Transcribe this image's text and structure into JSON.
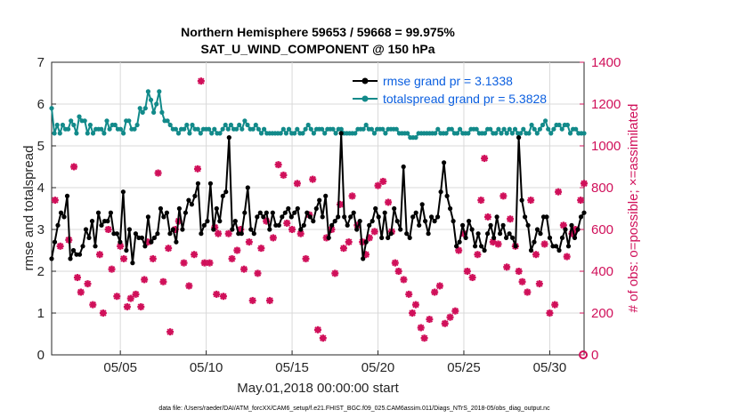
{
  "chart_data": {
    "type": "line",
    "title_line1": "Northern Hemisphere 59653 / 59668 = 99.975%",
    "title_line2": "SAT_U_WIND_COMPONENT @ 150 hPa",
    "xlabel": "May.01,2018 00:00:00 start",
    "ylabel_left": "rmse and totalspread",
    "ylabel_right": "# of obs: o=possible; ×=assimilated",
    "footer": "data file: /Users/raeder/DAI/ATM_forcXX/CAM6_setup/f.e21.FHIST_BGC.f09_025.CAM6assim.011/Diags_NTrS_2018-05/obs_diag_output.nc",
    "xlim": [
      1.0,
      32.0
    ],
    "ylim_left": [
      0,
      7
    ],
    "ylim_right": [
      0,
      1400
    ],
    "x_tick_labels": [
      "05/05",
      "05/10",
      "05/15",
      "05/20",
      "05/25",
      "05/30"
    ],
    "x_tick_values": [
      5,
      10,
      15,
      20,
      25,
      30
    ],
    "y_left_ticks": [
      "0",
      "1",
      "2",
      "3",
      "4",
      "5",
      "6",
      "7"
    ],
    "y_right_ticks": [
      "0",
      "200",
      "400",
      "600",
      "800",
      "1000",
      "1200",
      "1400"
    ],
    "legend": [
      {
        "name": "rmse",
        "label": "rmse grand pr = 3.1338",
        "color": "#000000"
      },
      {
        "name": "totalspread",
        "label": "totalspread grand pr = 5.3828",
        "color": "#128a8a"
      }
    ],
    "colors": {
      "obs": "#d0105a",
      "rmse": "#000000",
      "spread": "#128a8a"
    },
    "series": [
      {
        "name": "rmse",
        "values": [
          2.3,
          2.7,
          3.1,
          3.4,
          3.3,
          3.8,
          2.3,
          2.5,
          2.4,
          2.4,
          2.6,
          3.0,
          2.8,
          3.2,
          2.6,
          3.4,
          3.1,
          3.2,
          3.2,
          3.4,
          2.9,
          2.9,
          2.7,
          3.9,
          2.5,
          3.0,
          2.2,
          2.9,
          2.8,
          2.8,
          2.6,
          3.3,
          2.7,
          2.8,
          2.9,
          3.5,
          3.3,
          3.4,
          2.9,
          3.0,
          2.7,
          3.5,
          3.0,
          3.4,
          3.7,
          3.6,
          3.8,
          4.1,
          2.9,
          3.1,
          3.2,
          4.1,
          3.0,
          3.5,
          3.2,
          3.8,
          3.9,
          5.2,
          3.0,
          3.2,
          2.9,
          2.9,
          3.4,
          4.0,
          3.0,
          2.9,
          3.3,
          3.4,
          3.3,
          3.4,
          3.0,
          3.4,
          3.1,
          3.1,
          3.3,
          3.4,
          3.5,
          3.3,
          3.4,
          3.5,
          3.0,
          3.1,
          3.4,
          3.3,
          3.2,
          3.5,
          3.7,
          3.3,
          3.8,
          2.8,
          3.1,
          3.2,
          3.3,
          5.3,
          3.3,
          3.1,
          3.3,
          3.4,
          3.0,
          3.2,
          2.3,
          2.7,
          3.1,
          3.2,
          3.5,
          3.3,
          2.8,
          3.4,
          2.8,
          2.9,
          3.5,
          3.2,
          3.0,
          4.5,
          2.9,
          2.8,
          3.3,
          3.4,
          3.1,
          3.6,
          3.2,
          2.9,
          3.3,
          3.2,
          3.3,
          3.9,
          4.6,
          3.8,
          3.5,
          3.2,
          2.6,
          2.7,
          3.1,
          2.8,
          3.2,
          3.0,
          2.6,
          2.9,
          2.6,
          2.5,
          2.9,
          3.1,
          2.8,
          3.3,
          2.9,
          3.1,
          2.8,
          2.9,
          2.8,
          2.6,
          5.2,
          3.7,
          3.3,
          3.1,
          2.5,
          2.7,
          3.0,
          2.9,
          3.3,
          3.3,
          2.8,
          2.6,
          2.6,
          2.5,
          2.8,
          3.0,
          2.6,
          3.1,
          2.8,
          3.0,
          3.3,
          3.4
        ]
      },
      {
        "name": "totalspread",
        "values": [
          5.9,
          5.3,
          5.5,
          5.3,
          5.5,
          5.4,
          5.4,
          5.6,
          5.5,
          5.3,
          5.7,
          5.6,
          5.6,
          5.3,
          5.5,
          5.3,
          5.4,
          5.4,
          5.4,
          5.3,
          5.6,
          5.4,
          5.5,
          5.5,
          5.4,
          5.4,
          5.3,
          5.6,
          5.6,
          5.4,
          5.4,
          5.5,
          5.9,
          5.8,
          5.9,
          6.3,
          6.1,
          5.8,
          6.0,
          6.3,
          5.8,
          5.6,
          5.6,
          5.5,
          5.4,
          5.4,
          5.3,
          5.4,
          5.4,
          5.5,
          5.3,
          5.5,
          5.4,
          5.4,
          5.3,
          5.4,
          5.4,
          5.4,
          5.3,
          5.4,
          5.3,
          5.3,
          5.4,
          5.5,
          5.4,
          5.5,
          5.4,
          5.4,
          5.5,
          5.4,
          5.6,
          5.5,
          5.4,
          5.4,
          5.5,
          5.4,
          5.3,
          5.4,
          5.3,
          5.3,
          5.3,
          5.3,
          5.3,
          5.3,
          5.4,
          5.3,
          5.4,
          5.3,
          5.3,
          5.4,
          5.3,
          5.3,
          5.4,
          5.5,
          5.4,
          5.3,
          5.4,
          5.4,
          5.4,
          5.3,
          5.4,
          5.4,
          5.4,
          5.3,
          5.4,
          5.4,
          5.3,
          5.3,
          5.3,
          5.3,
          5.3,
          5.4,
          5.4,
          5.4,
          5.5,
          5.4,
          5.4,
          5.3,
          5.4,
          5.4,
          5.4,
          5.3,
          5.4,
          5.4,
          5.4,
          5.4,
          5.3,
          5.3,
          5.3,
          5.3,
          5.2,
          5.2,
          5.2,
          5.3,
          5.3,
          5.3,
          5.3,
          5.3,
          5.3,
          5.3,
          5.4,
          5.3,
          5.3,
          5.3,
          5.4,
          5.4,
          5.3,
          5.3,
          5.4,
          5.3,
          5.3,
          5.3,
          5.4,
          5.4,
          5.4,
          5.3,
          5.3,
          5.3,
          5.4,
          5.4,
          5.3,
          5.3,
          5.4,
          5.3,
          5.4,
          5.3,
          5.4,
          5.3,
          5.4,
          5.3,
          5.3,
          5.4,
          5.3,
          5.3,
          5.5,
          5.4,
          5.3,
          5.4,
          5.5,
          5.6,
          5.4,
          5.3,
          5.4,
          5.5,
          5.5,
          5.4,
          5.5,
          5.5,
          5.3,
          5.4,
          5.4,
          5.3,
          5.3,
          5.3
        ]
      },
      {
        "name": "assimilated_obs",
        "points": [
          [
            1.2,
            740
          ],
          [
            1.5,
            520
          ],
          [
            2.0,
            550
          ],
          [
            2.3,
            900
          ],
          [
            2.5,
            370
          ],
          [
            2.7,
            300
          ],
          [
            3.1,
            340
          ],
          [
            3.4,
            240
          ],
          [
            3.8,
            480
          ],
          [
            4.0,
            200
          ],
          [
            4.3,
            600
          ],
          [
            4.5,
            410
          ],
          [
            4.8,
            280
          ],
          [
            5.0,
            520
          ],
          [
            5.2,
            460
          ],
          [
            5.4,
            230
          ],
          [
            5.6,
            270
          ],
          [
            5.9,
            290
          ],
          [
            6.2,
            230
          ],
          [
            6.4,
            360
          ],
          [
            6.6,
            540
          ],
          [
            6.9,
            460
          ],
          [
            7.2,
            870
          ],
          [
            7.5,
            350
          ],
          [
            7.8,
            510
          ],
          [
            7.9,
            110
          ],
          [
            8.2,
            600
          ],
          [
            8.4,
            640
          ],
          [
            8.7,
            440
          ],
          [
            9.0,
            330
          ],
          [
            9.3,
            480
          ],
          [
            9.5,
            890
          ],
          [
            9.7,
            1310
          ],
          [
            9.9,
            440
          ],
          [
            10.2,
            440
          ],
          [
            10.5,
            610
          ],
          [
            10.6,
            290
          ],
          [
            10.7,
            580
          ],
          [
            11.0,
            280
          ],
          [
            11.3,
            580
          ],
          [
            11.5,
            460
          ],
          [
            11.8,
            500
          ],
          [
            12.0,
            600
          ],
          [
            12.2,
            410
          ],
          [
            12.5,
            540
          ],
          [
            12.7,
            260
          ],
          [
            13.0,
            390
          ],
          [
            13.2,
            510
          ],
          [
            13.5,
            640
          ],
          [
            13.7,
            260
          ],
          [
            13.9,
            560
          ],
          [
            14.2,
            910
          ],
          [
            14.5,
            860
          ],
          [
            14.7,
            630
          ],
          [
            15.0,
            600
          ],
          [
            15.3,
            820
          ],
          [
            15.5,
            580
          ],
          [
            15.8,
            460
          ],
          [
            16.0,
            670
          ],
          [
            16.2,
            840
          ],
          [
            16.5,
            120
          ],
          [
            16.8,
            80
          ],
          [
            17.0,
            560
          ],
          [
            17.3,
            600
          ],
          [
            17.5,
            390
          ],
          [
            17.8,
            720
          ],
          [
            18.0,
            510
          ],
          [
            18.3,
            540
          ],
          [
            18.5,
            760
          ],
          [
            18.8,
            620
          ],
          [
            19.1,
            540
          ],
          [
            19.3,
            480
          ],
          [
            19.5,
            560
          ],
          [
            19.8,
            590
          ],
          [
            20.0,
            810
          ],
          [
            20.3,
            830
          ],
          [
            20.6,
            730
          ],
          [
            20.8,
            590
          ],
          [
            21.0,
            440
          ],
          [
            21.2,
            400
          ],
          [
            21.5,
            360
          ],
          [
            21.8,
            290
          ],
          [
            22.0,
            200
          ],
          [
            22.2,
            240
          ],
          [
            22.5,
            130
          ],
          [
            22.7,
            80
          ],
          [
            23.0,
            170
          ],
          [
            23.3,
            300
          ],
          [
            23.6,
            330
          ],
          [
            23.9,
            150
          ],
          [
            24.2,
            180
          ],
          [
            24.5,
            210
          ],
          [
            24.7,
            500
          ],
          [
            25.0,
            580
          ],
          [
            25.2,
            400
          ],
          [
            25.5,
            370
          ],
          [
            25.8,
            480
          ],
          [
            26.0,
            740
          ],
          [
            26.2,
            940
          ],
          [
            26.4,
            660
          ],
          [
            26.7,
            540
          ],
          [
            27.0,
            530
          ],
          [
            27.3,
            760
          ],
          [
            27.5,
            420
          ],
          [
            27.7,
            650
          ],
          [
            28.0,
            520
          ],
          [
            28.2,
            400
          ],
          [
            28.4,
            350
          ],
          [
            28.7,
            300
          ],
          [
            28.9,
            740
          ],
          [
            29.2,
            480
          ],
          [
            29.4,
            340
          ],
          [
            29.7,
            530
          ],
          [
            30.0,
            200
          ],
          [
            30.3,
            240
          ],
          [
            30.5,
            780
          ],
          [
            30.8,
            620
          ],
          [
            31.0,
            470
          ],
          [
            31.3,
            580
          ],
          [
            31.5,
            600
          ],
          [
            31.8,
            740
          ],
          [
            32.0,
            820
          ]
        ]
      },
      {
        "name": "possible_obs",
        "points": [
          [
            31.95,
            0
          ]
        ]
      }
    ]
  }
}
